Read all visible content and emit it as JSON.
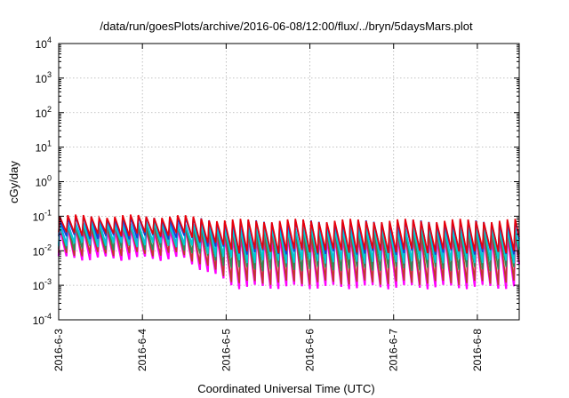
{
  "chart_data": {
    "type": "line",
    "title": "/data/run/goesPlots/archive/2016-06-08/12:00/flux/../bryn/5daysMars.plot",
    "xlabel": "Coordinated Universal Time (UTC)",
    "ylabel": "cGy/day",
    "yscale": "log",
    "ylim": [
      0.0001,
      10000
    ],
    "xlim": [
      "2016-06-03 00:00",
      "2016-06-08 12:00"
    ],
    "grid": true,
    "x_ticks": [
      "2016-6-3",
      "2016-6-4",
      "2016-6-5",
      "2016-6-6",
      "2016-6-7",
      "2016-6-8"
    ],
    "y_ticks": [
      {
        "base": "10",
        "exp": "-4"
      },
      {
        "base": "10",
        "exp": "-3"
      },
      {
        "base": "10",
        "exp": "-2"
      },
      {
        "base": "10",
        "exp": "-1"
      },
      {
        "base": "10",
        "exp": "0"
      },
      {
        "base": "10",
        "exp": "1"
      },
      {
        "base": "10",
        "exp": "2"
      },
      {
        "base": "10",
        "exp": "3"
      },
      {
        "base": "10",
        "exp": "4"
      }
    ],
    "sawtooth_period_hours": 2.25,
    "series": [
      {
        "color": "#ff00ff",
        "peak_day1": 0.045,
        "trough_day1": 0.006,
        "peak_later": 0.03,
        "trough_later": 0.0009
      },
      {
        "color": "#c0392b",
        "peak_day1": 0.05,
        "trough_day1": 0.008,
        "peak_later": 0.035,
        "trough_later": 0.0012
      },
      {
        "color": "#2e8b57",
        "peak_day1": 0.06,
        "trough_day1": 0.012,
        "peak_later": 0.045,
        "trough_later": 0.003
      },
      {
        "color": "#1e90ff",
        "peak_day1": 0.07,
        "trough_day1": 0.018,
        "peak_later": 0.05,
        "trough_later": 0.006
      },
      {
        "color": "#00ced1",
        "peak_day1": 0.06,
        "trough_day1": 0.015,
        "peak_later": 0.045,
        "trough_later": 0.005
      },
      {
        "color": "#1a3fd0",
        "peak_day1": 0.09,
        "trough_day1": 0.025,
        "peak_later": 0.07,
        "trough_later": 0.009
      },
      {
        "color": "#e8000b",
        "peak_day1": 0.1,
        "trough_day1": 0.03,
        "peak_later": 0.075,
        "trough_later": 0.01
      }
    ]
  }
}
